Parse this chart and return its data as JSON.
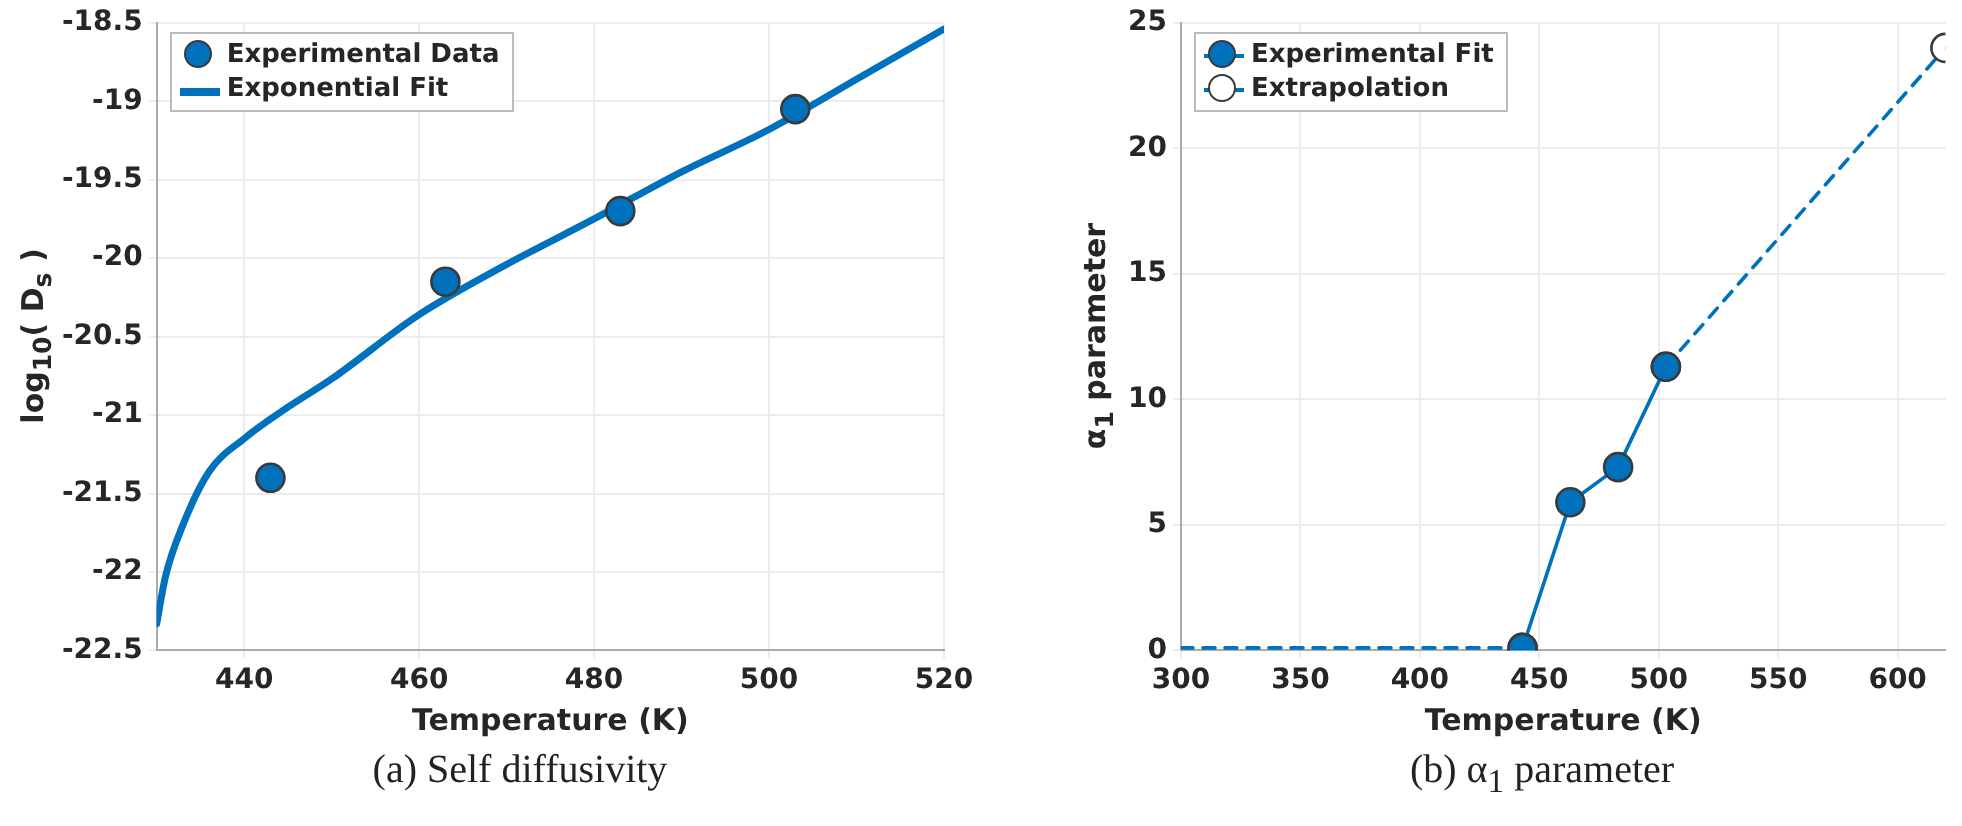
{
  "chart_data": [
    {
      "type": "line",
      "title": "(a) Self diffusivity",
      "xlabel": "Temperature (K)",
      "ylabel": "log$_{10}$( D$_{s}$ )",
      "xlim": [
        430,
        520
      ],
      "xticks": [
        440,
        460,
        480,
        500,
        520
      ],
      "ylim": [
        -22.5,
        -18.5
      ],
      "yticks": [
        -22.5,
        -22,
        -21.5,
        -21,
        -20.5,
        -20,
        -19.5,
        -19,
        -18.5
      ],
      "grid": true,
      "legend": "top left",
      "series": [
        {
          "name": "Experimental Data",
          "type": "scatter",
          "marker": "circle",
          "color": "#0072bd",
          "x": [
            443,
            463,
            483,
            503
          ],
          "values": [
            -21.4,
            -20.15,
            -19.7,
            -19.05
          ]
        },
        {
          "name": "Exponential Fit",
          "type": "line",
          "marker": "none",
          "line_style": "solid",
          "color": "#0072bd",
          "x": [
            430,
            431,
            433,
            436,
            440,
            445,
            450,
            460,
            470,
            480,
            490,
            500,
            510,
            520
          ],
          "values": [
            -22.33,
            -22.03,
            -21.7,
            -21.36,
            -21.15,
            -20.95,
            -20.77,
            -20.36,
            -20.04,
            -19.75,
            -19.45,
            -19.18,
            -18.86,
            -18.54
          ]
        }
      ]
    },
    {
      "type": "line",
      "title": "(b) α$_{1}$ parameter",
      "xlabel": "Temperature (K)",
      "ylabel": "α$_{1}$ parameter",
      "xlim": [
        300,
        620
      ],
      "xticks": [
        300,
        350,
        400,
        450,
        500,
        550,
        600
      ],
      "ylim": [
        0,
        25
      ],
      "yticks": [
        0,
        5,
        10,
        15,
        20,
        25
      ],
      "grid": true,
      "legend": "top left",
      "series": [
        {
          "name": "Experimental Fit",
          "type": "line",
          "marker": "circle",
          "line_style": "solid",
          "color": "#0072bd",
          "x": [
            443,
            463,
            483,
            503
          ],
          "values": [
            0.1,
            5.9,
            7.3,
            11.3
          ]
        },
        {
          "name": "Extrapolation",
          "type": "line",
          "marker": "circle",
          "line_style": "dashed",
          "color": "#0072bd",
          "x": [
            300,
            443,
            473,
            503,
            620
          ],
          "values": [
            0.1,
            0.1,
            null,
            11.3,
            24
          ]
        }
      ]
    }
  ]
}
